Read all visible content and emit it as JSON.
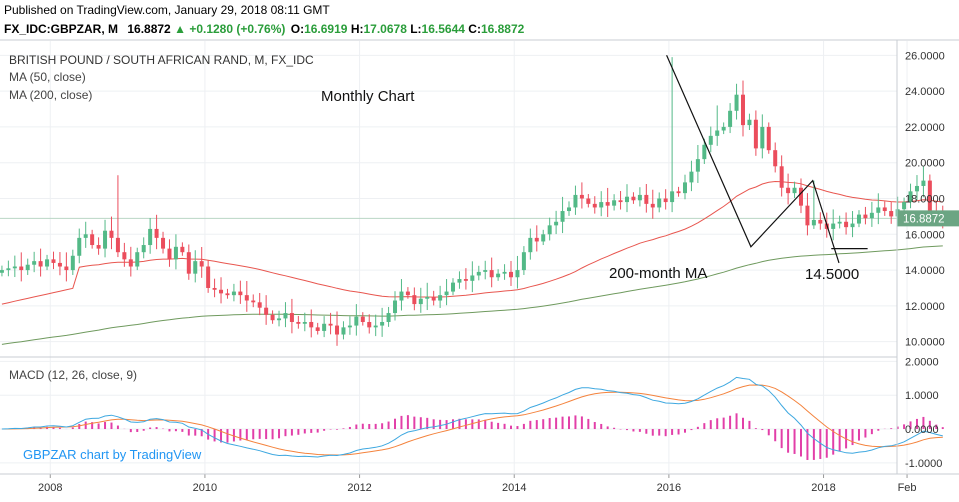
{
  "header": {
    "published": "Published on TradingView.com, January 29, 2018 08:11 GMT",
    "symbol": "FX_IDC:GBPZAR, M",
    "last": "16.8872",
    "change_arrow": "▲",
    "change": "+0.1280 (+0.76%)",
    "o_label": "O:",
    "o": "16.6919",
    "h_label": "H:",
    "h": "17.0678",
    "l_label": "L:",
    "l": "16.5644",
    "c_label": "C:",
    "c": "16.8872"
  },
  "colors": {
    "up": "#53b987",
    "down": "#eb4d5c",
    "ma50": "#e8564f",
    "ma200": "#6f9a5e",
    "macd": "#3ea8e0",
    "signal": "#f4833d",
    "hist": "#e23fa8",
    "last_price_bg": "#6ba583",
    "watermark": "#2196f3"
  },
  "chart_data": {
    "type": "candlestick",
    "title": "BRITISH POUND / SOUTH AFRICAN RAND, M, FX_IDC",
    "legend": [
      "MA (50, close)",
      "MA (200, close)"
    ],
    "annotations": {
      "monthly": "Monthly Chart",
      "ma200": "200-month MA",
      "target": "14.5000"
    },
    "last_price_label": "16.8872",
    "price_axis": {
      "ticks": [
        "26.0000",
        "24.0000",
        "22.0000",
        "20.0000",
        "18.0000",
        "16.0000",
        "14.0000",
        "12.0000",
        "10.0000"
      ],
      "ylim": [
        9.2,
        26.8
      ]
    },
    "time_axis": {
      "ticks": [
        "2008",
        "2010",
        "2012",
        "2014",
        "2016",
        "2018",
        "Feb"
      ],
      "xlim": [
        2007.35,
        2018.95
      ]
    },
    "close": [
      14.0,
      14.1,
      14.2,
      14.0,
      14.3,
      14.5,
      14.2,
      14.6,
      14.4,
      14.2,
      14.0,
      14.8,
      15.8,
      16.0,
      15.4,
      15.2,
      16.2,
      15.8,
      15.0,
      14.6,
      14.2,
      15.0,
      15.4,
      16.3,
      15.8,
      15.2,
      14.6,
      15.3,
      15.0,
      13.8,
      14.5,
      14.2,
      13.0,
      12.9,
      12.7,
      12.6,
      12.8,
      12.6,
      12.3,
      12.2,
      11.9,
      11.5,
      11.2,
      11.3,
      11.6,
      11.1,
      11.0,
      11.1,
      10.8,
      10.6,
      11.0,
      10.9,
      10.4,
      10.8,
      10.9,
      11.4,
      11.1,
      10.8,
      10.9,
      11.1,
      11.6,
      12.3,
      12.8,
      12.6,
      12.1,
      12.4,
      12.5,
      12.3,
      12.6,
      12.8,
      13.3,
      13.5,
      13.4,
      13.7,
      13.9,
      14.0,
      13.6,
      13.8,
      13.9,
      13.6,
      14.0,
      15.0,
      15.8,
      15.6,
      16.0,
      16.5,
      16.7,
      17.3,
      17.5,
      18.2,
      18.0,
      17.7,
      17.5,
      17.8,
      17.6,
      17.9,
      17.8,
      18.1,
      17.9,
      18.2,
      17.7,
      17.5,
      18.0,
      17.8,
      18.4,
      18.3,
      18.9,
      19.5,
      20.2,
      21.0,
      21.5,
      21.8,
      22.0,
      22.9,
      23.8,
      22.1,
      22.4,
      20.8,
      22.0,
      20.7,
      19.8,
      18.6,
      18.3,
      18.6,
      17.6,
      16.5,
      16.8,
      16.6,
      16.3,
      16.6,
      16.7,
      16.4,
      16.6,
      17.1,
      16.9,
      17.2,
      17.5,
      17.3,
      17.0,
      17.4,
      17.8,
      18.4,
      18.7,
      19.0,
      17.3,
      16.9,
      16.89
    ],
    "macd_pane": {
      "legend": "MACD (12, 26, close, 9)",
      "ticks": [
        "2.0000",
        "1.0000",
        "0.0000",
        "-1.0000"
      ],
      "ylim": [
        -1.3,
        2.1
      ]
    },
    "watermark": "GBPZAR chart by TradingView"
  }
}
